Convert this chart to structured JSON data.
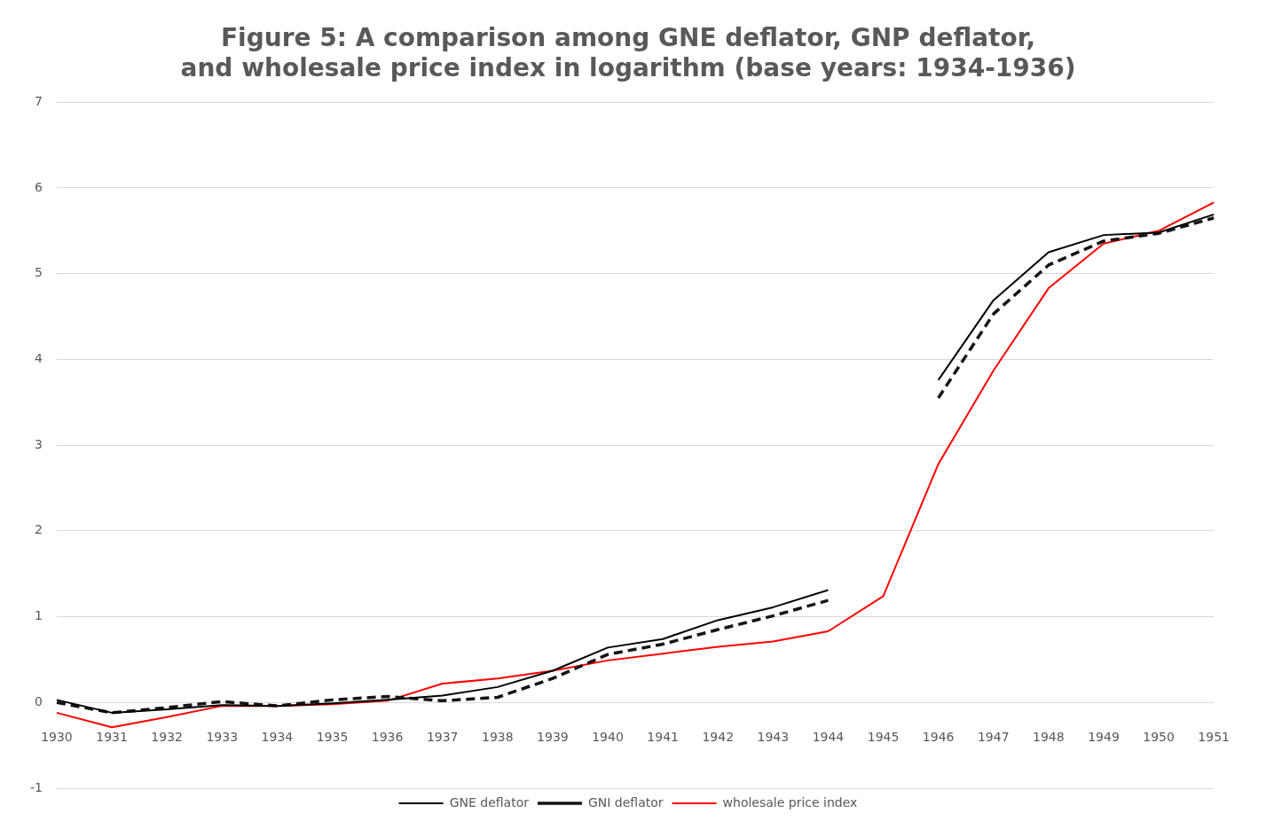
{
  "chart_data": {
    "type": "line",
    "title": "Figure 5: A comparison among GNE deflator, GNP deflator,\nand wholesale price index in logarithm (base years: 1934-1936)",
    "categories": [
      "1930",
      "1931",
      "1932",
      "1933",
      "1934",
      "1935",
      "1936",
      "1937",
      "1938",
      "1939",
      "1940",
      "1941",
      "1942",
      "1943",
      "1944",
      "1945",
      "1946",
      "1947",
      "1948",
      "1949",
      "1950",
      "1951"
    ],
    "series": [
      {
        "name": "GNE deflator",
        "color": "#000000",
        "line_style": "solid",
        "values": [
          0.03,
          -0.12,
          -0.08,
          -0.03,
          -0.04,
          -0.01,
          0.03,
          0.08,
          0.18,
          0.37,
          0.64,
          0.74,
          0.96,
          1.11,
          1.31,
          null,
          3.76,
          4.69,
          5.25,
          5.45,
          5.48,
          5.69
        ]
      },
      {
        "name": "GNI deflator",
        "color": "#141414",
        "line_style": "dashed",
        "values": [
          0.0,
          -0.12,
          -0.06,
          0.01,
          -0.04,
          0.03,
          0.07,
          0.02,
          0.06,
          0.28,
          0.56,
          0.68,
          0.85,
          1.01,
          1.19,
          null,
          3.55,
          4.53,
          5.1,
          5.38,
          5.47,
          5.65
        ]
      },
      {
        "name": "wholesale price index",
        "color": "#ff0000",
        "line_style": "solid",
        "values": [
          -0.12,
          -0.29,
          -0.17,
          -0.04,
          -0.04,
          -0.02,
          0.02,
          0.22,
          0.28,
          0.37,
          0.49,
          0.57,
          0.65,
          0.71,
          0.83,
          1.24,
          2.78,
          3.87,
          4.83,
          5.35,
          5.5,
          5.83
        ]
      }
    ],
    "ylim": [
      -1,
      7
    ],
    "yticks": [
      -1,
      0,
      1,
      2,
      3,
      4,
      5,
      6,
      7
    ],
    "grid": "y",
    "legend": "bottom",
    "marker": "none"
  }
}
